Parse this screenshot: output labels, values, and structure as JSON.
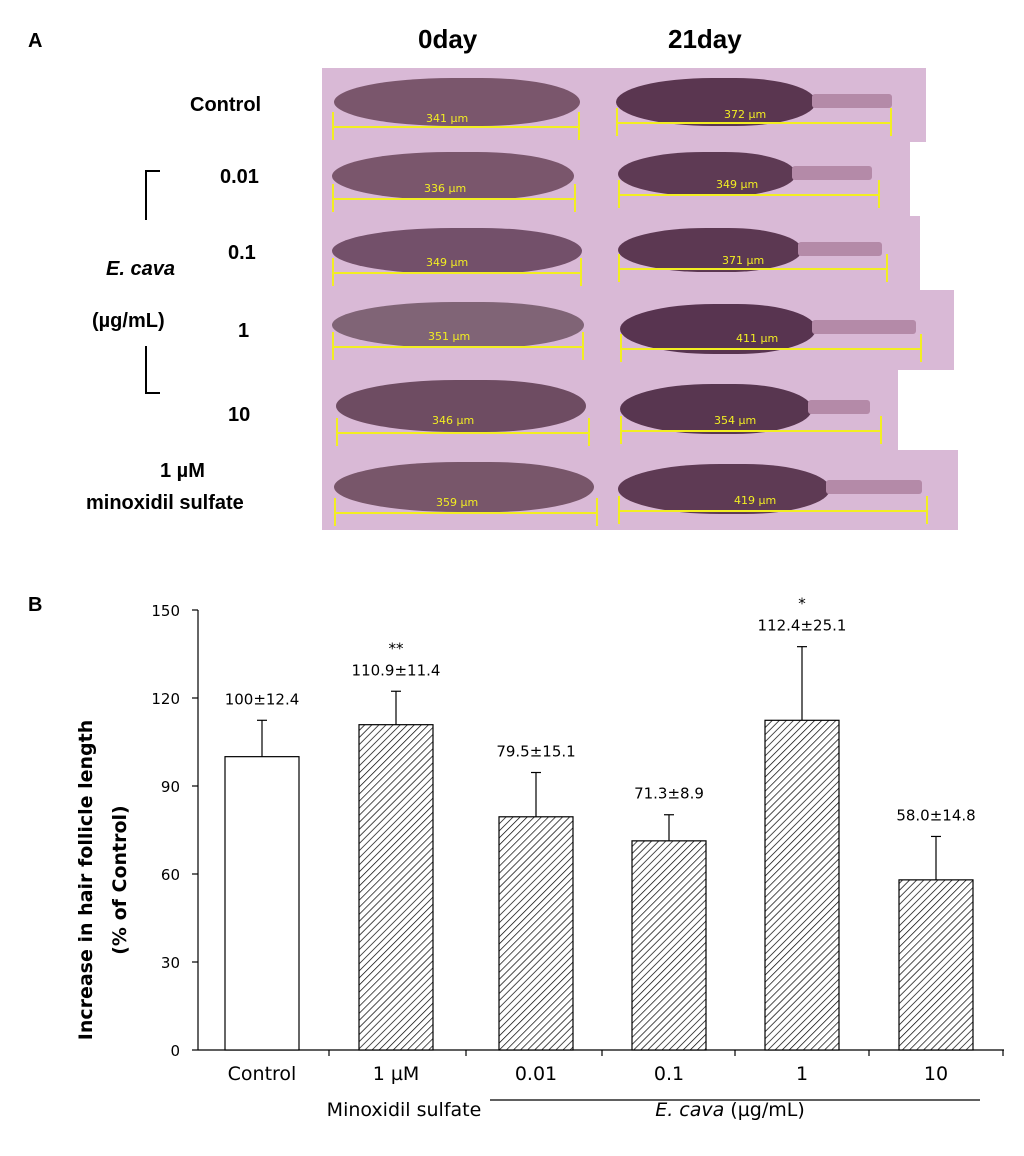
{
  "panel_a": {
    "label": "A",
    "col_headers": [
      "0day",
      "21day"
    ],
    "row_labels": {
      "control": "Control",
      "e_cava_line1": "E. cava",
      "e_cava_line2": "(µg/mL)",
      "conc": [
        "0.01",
        "0.1",
        "1",
        "10"
      ],
      "minox_line1": "1 µM",
      "minox_line2": "minoxidil sulfate"
    },
    "measurements_day0": [
      "341 µm",
      "336 µm",
      "349 µm",
      "351 µm",
      "346 µm",
      "359 µm"
    ],
    "measurements_day21": [
      "372 µm",
      "349 µm",
      "371 µm",
      "411 µm",
      "354 µm",
      "419 µm"
    ]
  },
  "panel_b": {
    "label": "B",
    "group_labels": {
      "minoxidil": "Minoxidil sulfate",
      "e_cava_italic": "E. cava",
      "e_cava_unit": " (µg/mL)"
    }
  },
  "chart_data": {
    "type": "bar",
    "title": "",
    "xlabel": "",
    "ylabel_line1": "Increase in hair follicle length",
    "ylabel_line2": "(% of Control)",
    "ylim": [
      0,
      150
    ],
    "yticks": [
      0,
      30,
      60,
      90,
      120,
      150
    ],
    "categories": [
      "Control",
      "1 µM",
      "0.01",
      "0.1",
      "1",
      "10"
    ],
    "values": [
      100,
      110.9,
      79.5,
      71.3,
      112.4,
      58.0
    ],
    "errors": [
      12.4,
      11.4,
      15.1,
      8.9,
      25.1,
      14.8
    ],
    "value_labels": [
      "100±12.4",
      "110.9±11.4",
      "79.5±15.1",
      "71.3±8.9",
      "112.4±25.1",
      "58.0±14.8"
    ],
    "significance": [
      "",
      "**",
      "",
      "",
      "*",
      ""
    ],
    "fill": [
      "white",
      "hatched",
      "hatched",
      "hatched",
      "hatched",
      "hatched"
    ]
  }
}
